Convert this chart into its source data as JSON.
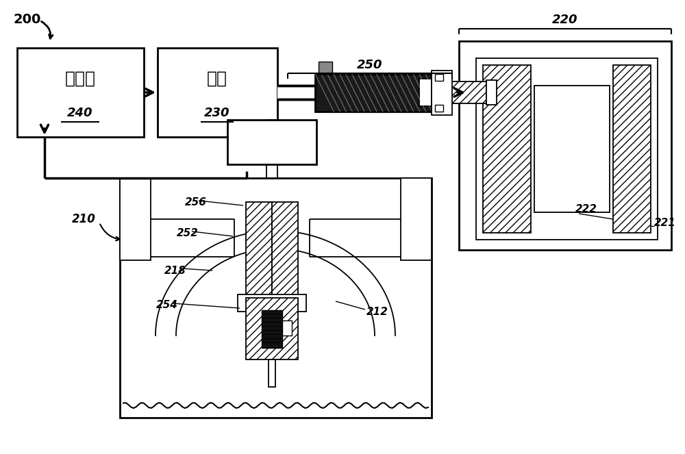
{
  "bg_color": "#ffffff",
  "line_color": "#000000",
  "controller_label": "控制器",
  "servo_label": "伺服",
  "label_200": "200",
  "label_220": "220",
  "label_240": "240",
  "label_230": "230",
  "label_250": "250",
  "label_210": "210",
  "label_218": "218",
  "label_252": "252",
  "label_256": "256",
  "label_254": "254",
  "label_212": "212",
  "label_222": "222",
  "label_221": "221"
}
